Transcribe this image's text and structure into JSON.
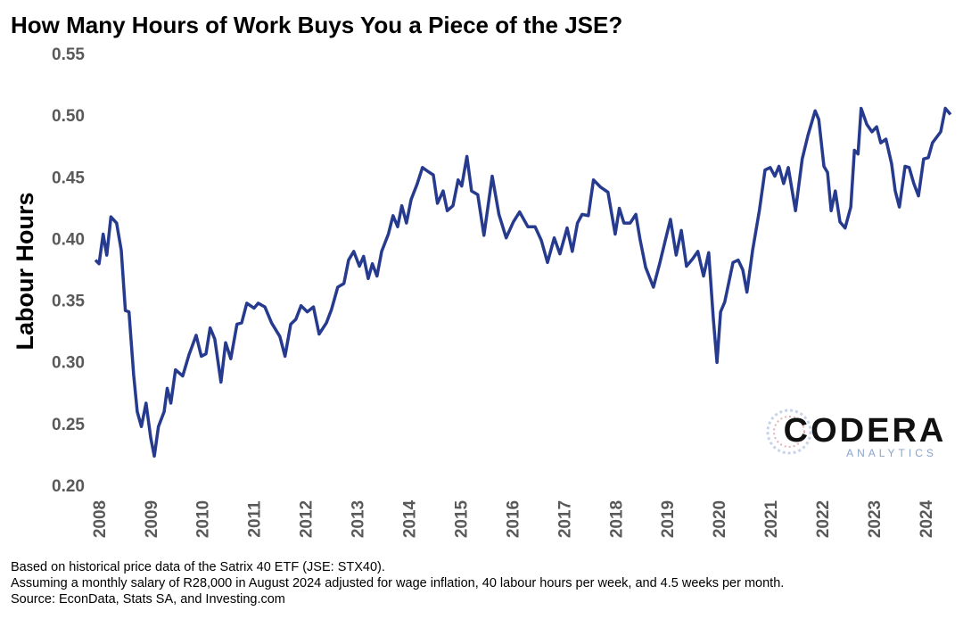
{
  "chart_data": {
    "type": "line",
    "title": "How Many Hours of Work Buys You a Piece of the JSE?",
    "y_label": "Labour Hours",
    "notes": [
      "Based on historical price data of the Satrix 40 ETF (JSE: STX40).",
      "Assuming a monthly salary of R28,000 in August 2024 adjusted for wage inflation, 40 labour hours per week, and 4.5 weeks per month.",
      "Source: EconData, Stats SA, and Investing.com"
    ],
    "logo": {
      "name": "CODERA",
      "tagline": "ANALYTICS"
    },
    "grid": false,
    "xlim": [
      2007.9,
      2024.45
    ],
    "xticks": [
      2008,
      2009,
      2010,
      2011,
      2012,
      2013,
      2014,
      2015,
      2016,
      2017,
      2018,
      2019,
      2020,
      2021,
      2022,
      2023,
      2024
    ],
    "ylim": [
      0.2,
      0.55
    ],
    "yticks": [
      {
        "value": 0.2,
        "label": "0.20"
      },
      0.25,
      {
        "value": 0.3,
        "label": "0.30"
      },
      0.35,
      {
        "value": 0.4,
        "label": "0.40"
      },
      0.45,
      {
        "value": 0.5,
        "label": "0.50"
      },
      0.55
    ],
    "x": [
      2007.9,
      2007.97,
      2008.05,
      2008.12,
      2008.2,
      2008.31,
      2008.4,
      2008.48,
      2008.55,
      2008.64,
      2008.71,
      2008.79,
      2008.88,
      2008.97,
      2009.04,
      2009.12,
      2009.23,
      2009.29,
      2009.36,
      2009.45,
      2009.59,
      2009.71,
      2009.85,
      2009.95,
      2010.04,
      2010.12,
      2010.21,
      2010.33,
      2010.42,
      2010.52,
      2010.64,
      2010.73,
      2010.83,
      2010.97,
      2011.05,
      2011.18,
      2011.31,
      2011.47,
      2011.57,
      2011.68,
      2011.78,
      2011.88,
      2012.0,
      2012.12,
      2012.23,
      2012.37,
      2012.47,
      2012.59,
      2012.71,
      2012.8,
      2012.9,
      2013.01,
      2013.09,
      2013.18,
      2013.26,
      2013.35,
      2013.44,
      2013.57,
      2013.66,
      2013.75,
      2013.83,
      2013.92,
      2014.01,
      2014.13,
      2014.23,
      2014.33,
      2014.44,
      2014.52,
      2014.63,
      2014.71,
      2014.82,
      2014.92,
      2014.99,
      2015.09,
      2015.18,
      2015.3,
      2015.42,
      2015.58,
      2015.71,
      2015.85,
      2015.99,
      2016.11,
      2016.27,
      2016.41,
      2016.53,
      2016.65,
      2016.78,
      2016.89,
      2017.03,
      2017.13,
      2017.23,
      2017.32,
      2017.44,
      2017.54,
      2017.68,
      2017.82,
      2017.96,
      2018.04,
      2018.13,
      2018.25,
      2018.36,
      2018.44,
      2018.55,
      2018.7,
      2018.82,
      2018.93,
      2019.03,
      2019.14,
      2019.24,
      2019.34,
      2019.46,
      2019.56,
      2019.67,
      2019.77,
      2019.86,
      2019.93,
      2020.0,
      2020.08,
      2020.24,
      2020.34,
      2020.43,
      2020.51,
      2020.62,
      2020.75,
      2020.86,
      2020.96,
      2021.05,
      2021.13,
      2021.22,
      2021.31,
      2021.45,
      2021.58,
      2021.69,
      2021.83,
      2021.9,
      2022.0,
      2022.07,
      2022.14,
      2022.22,
      2022.31,
      2022.41,
      2022.52,
      2022.59,
      2022.66,
      2022.72,
      2022.83,
      2022.93,
      2023.02,
      2023.1,
      2023.2,
      2023.31,
      2023.38,
      2023.46,
      2023.57,
      2023.65,
      2023.74,
      2023.83,
      2023.93,
      2024.02,
      2024.1,
      2024.26,
      2024.35,
      2024.45
    ],
    "series": [
      {
        "name": "Labour Hours",
        "color": "#263a8e",
        "values": [
          0.384,
          0.381,
          0.405,
          0.388,
          0.419,
          0.414,
          0.392,
          0.343,
          0.342,
          0.291,
          0.261,
          0.249,
          0.268,
          0.24,
          0.225,
          0.249,
          0.261,
          0.28,
          0.268,
          0.295,
          0.29,
          0.307,
          0.323,
          0.306,
          0.308,
          0.329,
          0.32,
          0.285,
          0.317,
          0.304,
          0.332,
          0.333,
          0.349,
          0.345,
          0.349,
          0.346,
          0.333,
          0.322,
          0.306,
          0.332,
          0.336,
          0.347,
          0.342,
          0.346,
          0.324,
          0.333,
          0.344,
          0.362,
          0.365,
          0.384,
          0.391,
          0.379,
          0.387,
          0.369,
          0.381,
          0.371,
          0.391,
          0.405,
          0.42,
          0.411,
          0.428,
          0.414,
          0.433,
          0.446,
          0.459,
          0.456,
          0.453,
          0.43,
          0.44,
          0.424,
          0.428,
          0.449,
          0.444,
          0.468,
          0.44,
          0.437,
          0.404,
          0.452,
          0.421,
          0.402,
          0.415,
          0.423,
          0.411,
          0.411,
          0.4,
          0.382,
          0.402,
          0.389,
          0.41,
          0.391,
          0.414,
          0.421,
          0.42,
          0.449,
          0.443,
          0.439,
          0.405,
          0.426,
          0.414,
          0.414,
          0.421,
          0.401,
          0.378,
          0.362,
          0.381,
          0.4,
          0.417,
          0.388,
          0.408,
          0.379,
          0.385,
          0.391,
          0.371,
          0.39,
          0.336,
          0.301,
          0.342,
          0.35,
          0.382,
          0.384,
          0.376,
          0.358,
          0.392,
          0.424,
          0.457,
          0.459,
          0.452,
          0.46,
          0.446,
          0.459,
          0.424,
          0.466,
          0.485,
          0.505,
          0.498,
          0.46,
          0.455,
          0.424,
          0.44,
          0.415,
          0.41,
          0.427,
          0.473,
          0.47,
          0.507,
          0.494,
          0.488,
          0.492,
          0.479,
          0.482,
          0.462,
          0.44,
          0.427,
          0.46,
          0.459,
          0.446,
          0.436,
          0.466,
          0.467,
          0.479,
          0.488,
          0.507,
          0.502
        ]
      }
    ]
  }
}
